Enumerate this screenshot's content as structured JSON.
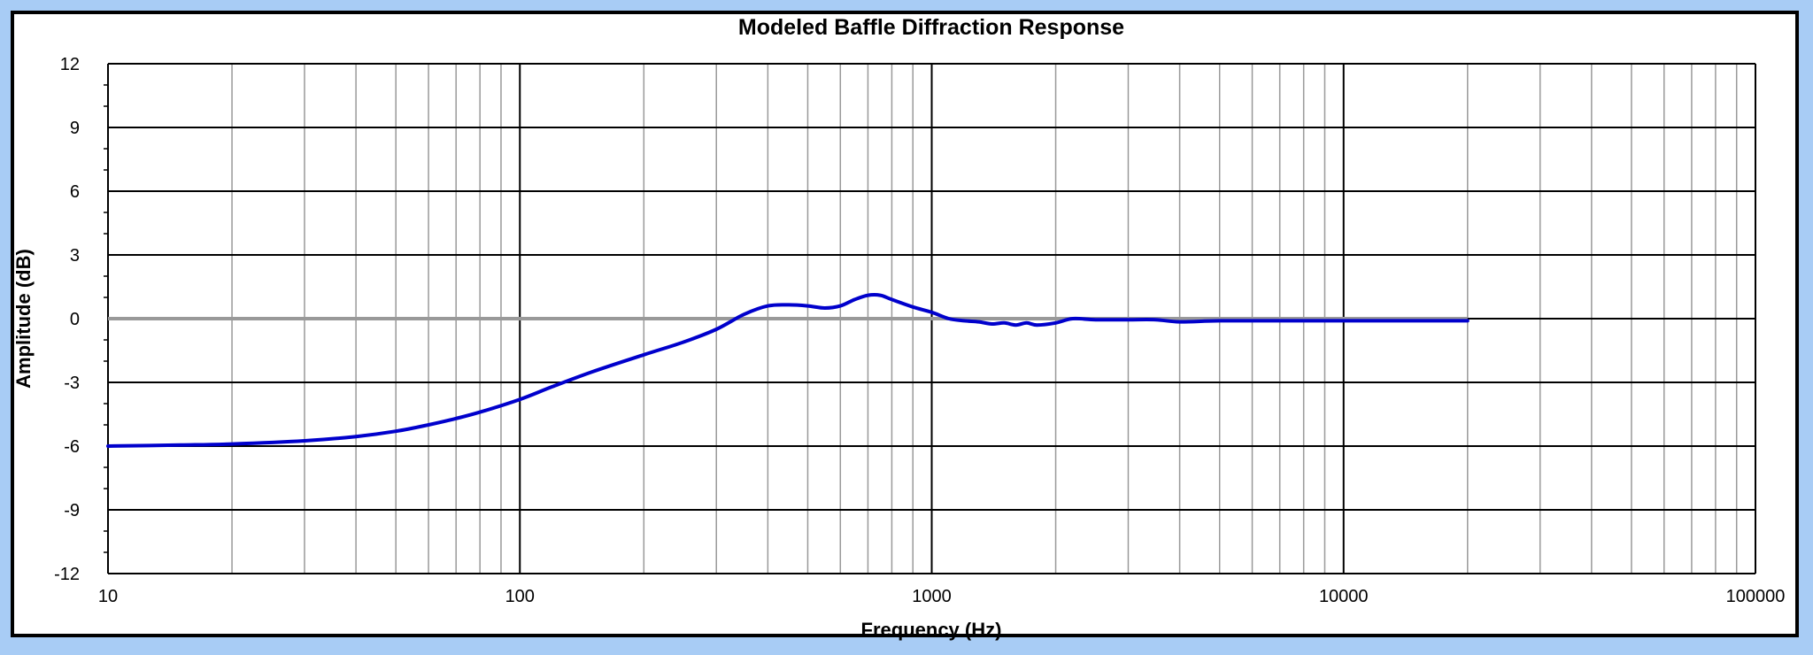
{
  "colors": {
    "background": "#a8ccf5",
    "plot_background": "#ffffff",
    "response_line": "#0000cc",
    "reference_line": "#999999",
    "major_grid": "#000000",
    "minor_grid": "#999999"
  },
  "chart_data": {
    "type": "line",
    "title": "Modeled Baffle Diffraction Response",
    "xlabel": "Frequency (Hz)",
    "ylabel": "Amplitude (dB)",
    "x_scale": "log",
    "xlim": [
      10,
      100000
    ],
    "ylim": [
      -12,
      12
    ],
    "x_ticks": [
      10,
      100,
      1000,
      10000,
      100000
    ],
    "x_tick_labels": [
      "10",
      "100",
      "1000",
      "10000",
      "100000"
    ],
    "y_ticks": [
      12,
      9,
      6,
      3,
      0,
      -3,
      -6,
      -9,
      -12
    ],
    "y_tick_labels": [
      "12",
      "9",
      "6",
      "3",
      "0",
      "-3",
      "-6",
      "-9",
      "-12"
    ],
    "grid": true,
    "legend": "none",
    "reference_line": {
      "y": 0,
      "x_range": [
        10,
        20000
      ]
    },
    "series": [
      {
        "x": [
          10,
          15,
          20,
          30,
          40,
          50,
          60,
          70,
          80,
          100,
          120,
          150,
          200,
          250,
          300,
          350,
          400,
          450,
          500,
          550,
          600,
          650,
          700,
          750,
          800,
          900,
          1000,
          1100,
          1200,
          1300,
          1400,
          1500,
          1600,
          1700,
          1800,
          2000,
          2200,
          2500,
          3000,
          3500,
          4000,
          5000,
          7000,
          10000,
          15000,
          20000
        ],
        "y": [
          -6.0,
          -5.95,
          -5.9,
          -5.75,
          -5.55,
          -5.3,
          -5.0,
          -4.7,
          -4.4,
          -3.8,
          -3.2,
          -2.5,
          -1.7,
          -1.1,
          -0.5,
          0.2,
          0.6,
          0.65,
          0.6,
          0.5,
          0.6,
          0.9,
          1.1,
          1.1,
          0.9,
          0.55,
          0.3,
          0.0,
          -0.1,
          -0.15,
          -0.25,
          -0.2,
          -0.3,
          -0.2,
          -0.3,
          -0.2,
          0.0,
          -0.05,
          -0.05,
          -0.05,
          -0.15,
          -0.1,
          -0.1,
          -0.1,
          -0.1,
          -0.1
        ]
      }
    ]
  }
}
